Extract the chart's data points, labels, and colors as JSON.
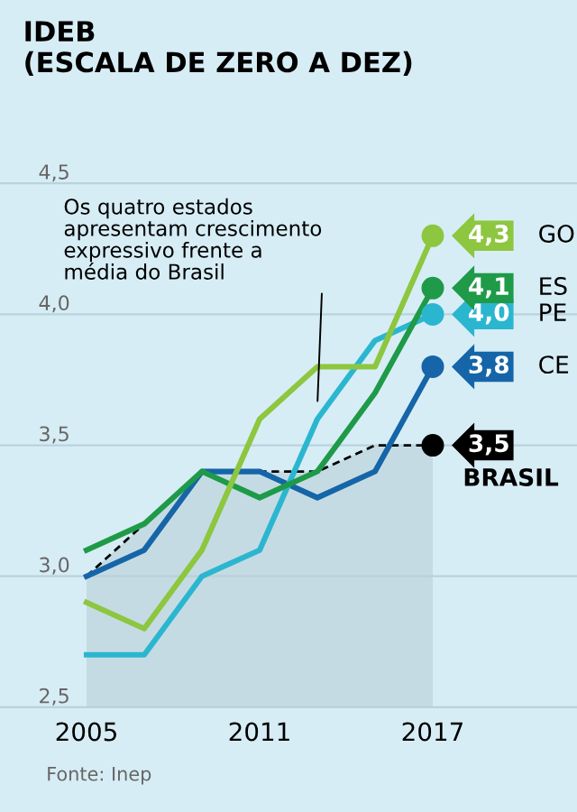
{
  "chart_data": {
    "type": "line",
    "title": "IDEB\n(ESCALA DE ZERO A DEZ)",
    "x": [
      2005,
      2007,
      2009,
      2011,
      2013,
      2015,
      2017
    ],
    "series": [
      {
        "type": "area",
        "name": "BRASIL",
        "color": "#000000",
        "line_style": "dashed",
        "values": [
          3.0,
          3.2,
          3.4,
          3.4,
          3.4,
          3.5,
          3.5
        ],
        "value_labels": [
          null,
          null,
          null,
          null,
          null,
          null,
          "3,5"
        ]
      },
      {
        "name": "CE",
        "color": "#1565a8",
        "values": [
          3.0,
          3.1,
          3.4,
          3.4,
          3.3,
          3.4,
          3.8
        ],
        "value_labels": [
          null,
          null,
          null,
          null,
          null,
          null,
          "3,8"
        ]
      },
      {
        "name": "PE",
        "color": "#2bb6d0",
        "values": [
          2.7,
          2.7,
          3.0,
          3.1,
          3.6,
          3.9,
          4.0
        ],
        "value_labels": [
          null,
          null,
          null,
          null,
          null,
          null,
          "4,0"
        ]
      },
      {
        "name": "ES",
        "color": "#1e9a48",
        "values": [
          3.1,
          3.2,
          3.4,
          3.3,
          3.4,
          3.7,
          4.1
        ],
        "value_labels": [
          null,
          null,
          null,
          null,
          null,
          null,
          "4,1"
        ]
      },
      {
        "name": "GO",
        "color": "#8dc63f",
        "values": [
          2.9,
          2.8,
          3.1,
          3.6,
          3.8,
          3.8,
          4.3
        ],
        "value_labels": [
          null,
          null,
          null,
          null,
          null,
          null,
          "4,3"
        ]
      }
    ],
    "legend": "right",
    "xlim": [
      2002,
      2022
    ],
    "xticks": [
      2005,
      2011,
      2017
    ],
    "ylim": [
      2.1,
      5.2
    ],
    "yticks": [
      {
        "value": 2.5,
        "label": "2,5"
      },
      {
        "value": 3.0,
        "label": "3,0"
      },
      {
        "value": 3.5,
        "label": "3,5"
      },
      {
        "value": 4.0,
        "label": "4,0"
      },
      {
        "value": 4.5,
        "label": "4,5"
      }
    ],
    "grid": "y",
    "annotations": [
      {
        "text": "Os quatro estados\napresentam crescimento\nexpressivo frente a\nmédia do Brasil",
        "x": 2013,
        "y": 3.65
      },
      "Fonte: Inep"
    ]
  }
}
